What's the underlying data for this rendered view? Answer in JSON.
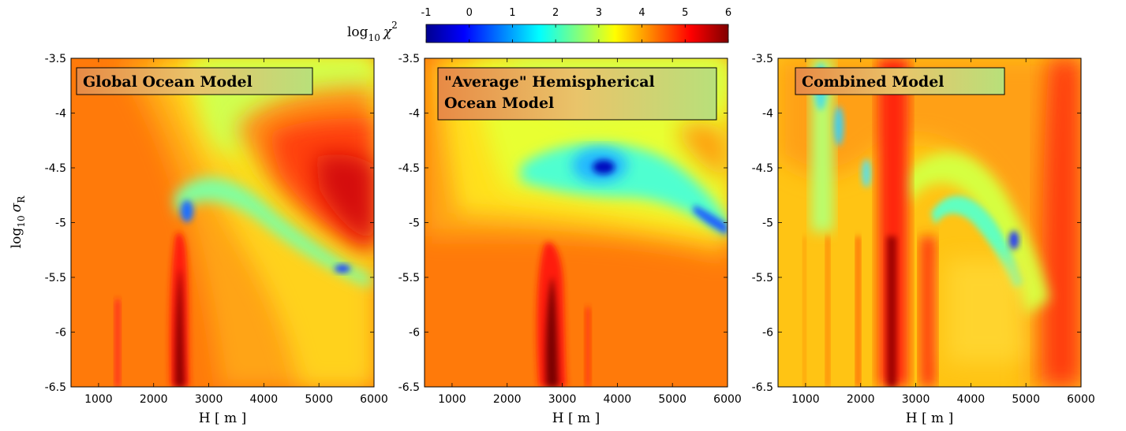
{
  "colorbar": {
    "label": "log",
    "label_sub": "10",
    "label_sym": "χ",
    "label_sup": "2",
    "ticks": [
      "-1",
      "0",
      "1",
      "2",
      "3",
      "4",
      "5",
      "6"
    ],
    "range": [
      -1,
      6
    ],
    "colormap": "jet",
    "colormap_stops": [
      "#00008f",
      "#0000ff",
      "#00ffff",
      "#ffff00",
      "#ff0000",
      "#800000"
    ]
  },
  "chart_data": [
    {
      "type": "heatmap",
      "title": "Global Ocean Model",
      "xlabel": "H [ m ]",
      "ylabel_main": "log",
      "ylabel_sub": "10",
      "ylabel_sym": "σ",
      "ylabel_subscript": "R",
      "xlim": [
        500,
        6000
      ],
      "ylim": [
        -6.5,
        -3.5
      ],
      "x_ticks": [
        1000,
        2000,
        3000,
        4000,
        5000,
        6000
      ],
      "y_ticks": [
        -6.5,
        -6,
        -5.5,
        -5,
        -4.5,
        -4,
        -3.5
      ],
      "background_value": 4.9,
      "features": [
        {
          "kind": "minimum",
          "x": 2300,
          "y": -4.87,
          "value": 2.2
        },
        {
          "kind": "minimum",
          "x": 5450,
          "y": -5.43,
          "value": 2.0
        },
        {
          "kind": "valley",
          "x": [
            2250,
            2900,
            4000,
            5500
          ],
          "y": [
            -4.9,
            -4.6,
            -5.0,
            -5.45
          ],
          "value": 3.2
        },
        {
          "kind": "maximum",
          "x": 5800,
          "y": -4.6,
          "value": 5.8
        },
        {
          "kind": "ridge",
          "x": 2520,
          "y_range": [
            -6.5,
            -5.1
          ],
          "value": 6.0
        }
      ]
    },
    {
      "type": "heatmap",
      "title": "\"Average\" Hemispherical Ocean Model",
      "xlabel": "H [ m ]",
      "xlim": [
        500,
        6000
      ],
      "ylim": [
        -6.5,
        -3.5
      ],
      "x_ticks": [
        1000,
        2000,
        3000,
        4000,
        5000,
        6000
      ],
      "y_ticks": [
        -6.5,
        -6,
        -5.5,
        -5,
        -4.5,
        -4,
        -3.5
      ],
      "background_value": 4.9,
      "features": [
        {
          "kind": "minimum",
          "x": 3800,
          "y": -4.48,
          "value": 1.6
        },
        {
          "kind": "minimum",
          "x": 5950,
          "y": -5.0,
          "value": 2.0
        },
        {
          "kind": "valley",
          "x": [
            2400,
            3800,
            5000,
            6000
          ],
          "y": [
            -4.5,
            -4.5,
            -4.8,
            -5.0
          ],
          "value": 3.3
        },
        {
          "kind": "ridge",
          "x": 2750,
          "y_range": [
            -6.5,
            -5.0
          ],
          "value": 5.9
        }
      ]
    },
    {
      "type": "heatmap",
      "title": "Combined Model",
      "xlabel": "H [ m ]",
      "xlim": [
        500,
        6000
      ],
      "ylim": [
        -6.5,
        -3.5
      ],
      "x_ticks": [
        1000,
        2000,
        3000,
        4000,
        5000,
        6000
      ],
      "y_ticks": [
        -6.5,
        -6,
        -5.5,
        -5,
        -4.5,
        -4,
        -3.5
      ],
      "background_value": 4.5,
      "features": [
        {
          "kind": "minimum",
          "x": 4650,
          "y": -5.15,
          "value": 1.8
        },
        {
          "kind": "minimum",
          "x": 2000,
          "y": -4.6,
          "value": 2.5
        },
        {
          "kind": "minimum",
          "x": 1300,
          "y": -3.7,
          "value": 2.6
        },
        {
          "kind": "ridge",
          "x": 2650,
          "y_range": [
            -6.5,
            -3.5
          ],
          "value": 5.6
        },
        {
          "kind": "ridge",
          "x": 3100,
          "y_range": [
            -6.5,
            -5.0
          ],
          "value": 5.4
        },
        {
          "kind": "maximum",
          "x": 5900,
          "y": -4.0,
          "value": 5.7
        }
      ]
    }
  ]
}
